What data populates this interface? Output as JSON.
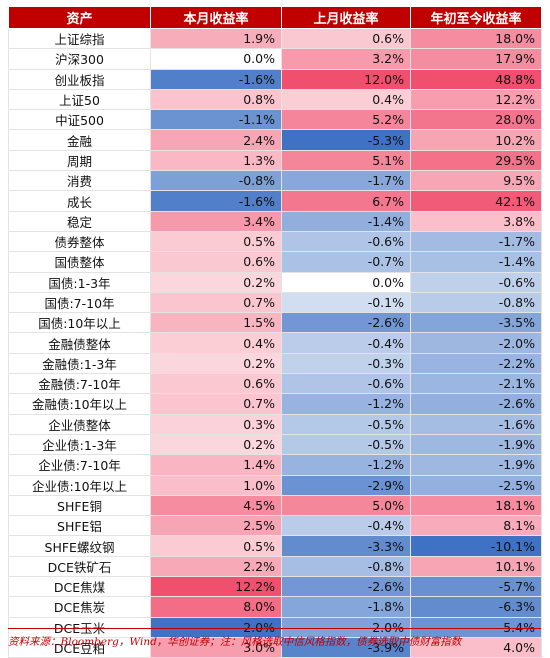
{
  "table": {
    "headers": [
      "资产",
      "本月收益率",
      "上月收益率",
      "年初至今收益率"
    ],
    "rows": [
      {
        "asset": "上证综指",
        "m": "1.9%",
        "pm": "0.6%",
        "ytd": "18.0%"
      },
      {
        "asset": "沪深300",
        "m": "0.0%",
        "pm": "3.2%",
        "ytd": "17.9%"
      },
      {
        "asset": "创业板指",
        "m": "-1.6%",
        "pm": "12.0%",
        "ytd": "48.8%"
      },
      {
        "asset": "上证50",
        "m": "0.8%",
        "pm": "0.4%",
        "ytd": "12.2%"
      },
      {
        "asset": "中证500",
        "m": "-1.1%",
        "pm": "5.2%",
        "ytd": "28.0%"
      },
      {
        "asset": "金融",
        "m": "2.4%",
        "pm": "-5.3%",
        "ytd": "10.2%"
      },
      {
        "asset": "周期",
        "m": "1.3%",
        "pm": "5.1%",
        "ytd": "29.5%"
      },
      {
        "asset": "消费",
        "m": "-0.8%",
        "pm": "-1.7%",
        "ytd": "9.5%"
      },
      {
        "asset": "成长",
        "m": "-1.6%",
        "pm": "6.7%",
        "ytd": "42.1%"
      },
      {
        "asset": "稳定",
        "m": "3.4%",
        "pm": "-1.4%",
        "ytd": "3.8%"
      },
      {
        "asset": "债券整体",
        "m": "0.5%",
        "pm": "-0.6%",
        "ytd": "-1.7%"
      },
      {
        "asset": "国债整体",
        "m": "0.6%",
        "pm": "-0.7%",
        "ytd": "-1.4%"
      },
      {
        "asset": "国债:1-3年",
        "m": "0.2%",
        "pm": "0.0%",
        "ytd": "-0.6%"
      },
      {
        "asset": "国债:7-10年",
        "m": "0.7%",
        "pm": "-0.1%",
        "ytd": "-0.8%"
      },
      {
        "asset": "国债:10年以上",
        "m": "1.5%",
        "pm": "-2.6%",
        "ytd": "-3.5%"
      },
      {
        "asset": "金融债整体",
        "m": "0.4%",
        "pm": "-0.4%",
        "ytd": "-2.0%"
      },
      {
        "asset": "金融债:1-3年",
        "m": "0.2%",
        "pm": "-0.3%",
        "ytd": "-2.2%"
      },
      {
        "asset": "金融债:7-10年",
        "m": "0.6%",
        "pm": "-0.6%",
        "ytd": "-2.1%"
      },
      {
        "asset": "金融债:10年以上",
        "m": "0.7%",
        "pm": "-1.2%",
        "ytd": "-2.6%"
      },
      {
        "asset": "企业债整体",
        "m": "0.3%",
        "pm": "-0.5%",
        "ytd": "-1.6%"
      },
      {
        "asset": "企业债:1-3年",
        "m": "0.2%",
        "pm": "-0.5%",
        "ytd": "-1.9%"
      },
      {
        "asset": "企业债:7-10年",
        "m": "1.4%",
        "pm": "-1.2%",
        "ytd": "-1.9%"
      },
      {
        "asset": "企业债:10年以上",
        "m": "1.0%",
        "pm": "-2.9%",
        "ytd": "-2.5%"
      },
      {
        "asset": "SHFE铜",
        "m": "4.5%",
        "pm": "5.0%",
        "ytd": "18.1%"
      },
      {
        "asset": "SHFE铝",
        "m": "2.5%",
        "pm": "-0.4%",
        "ytd": "8.1%"
      },
      {
        "asset": "SHFE螺纹钢",
        "m": "0.5%",
        "pm": "-3.3%",
        "ytd": "-10.1%"
      },
      {
        "asset": "DCE铁矿石",
        "m": "2.2%",
        "pm": "-0.8%",
        "ytd": "10.1%"
      },
      {
        "asset": "DCE焦煤",
        "m": "12.2%",
        "pm": "-2.6%",
        "ytd": "-5.7%"
      },
      {
        "asset": "DCE焦炭",
        "m": "8.0%",
        "pm": "-1.8%",
        "ytd": "-6.3%"
      },
      {
        "asset": "DCE玉米",
        "m": "-2.0%",
        "pm": "-2.0%",
        "ytd": "-5.4%"
      },
      {
        "asset": "DCE豆粕",
        "m": "3.0%",
        "pm": "-3.9%",
        "ytd": "4.0%"
      }
    ]
  },
  "footer": {
    "source": "资料来源：Bloomberg，Wind，华创证券；注：风格选取中信风格指数，债券选取中债财富指数"
  },
  "colors": {
    "header_bg": "#c00000",
    "positive": "#f0506e",
    "negative": "#3f72c4"
  }
}
